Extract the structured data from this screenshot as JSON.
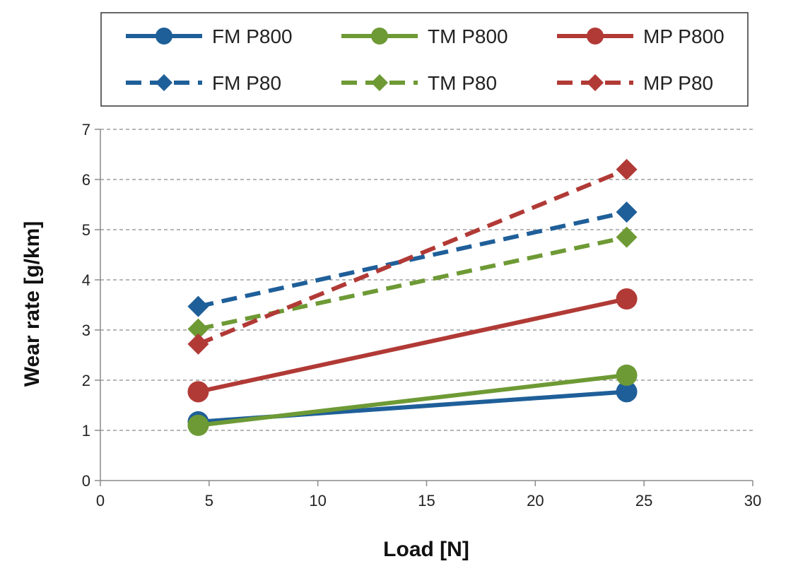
{
  "chart_data": {
    "type": "line",
    "title": "",
    "xlabel": "Load [N]",
    "ylabel": "Wear rate [g/km]",
    "xlim": [
      0,
      30
    ],
    "ylim": [
      0,
      7
    ],
    "xticks": [
      0,
      5,
      10,
      15,
      20,
      25,
      30
    ],
    "yticks": [
      0,
      1,
      2,
      3,
      4,
      5,
      6,
      7
    ],
    "grid": "horizontal dashed",
    "legend_position": "top",
    "series": [
      {
        "name": "FM P800",
        "x": [
          4.5,
          24.2
        ],
        "y": [
          1.17,
          1.77
        ],
        "color": "#1f5f99",
        "dash": "solid",
        "marker": "circle"
      },
      {
        "name": "TM P800",
        "x": [
          4.5,
          24.2
        ],
        "y": [
          1.1,
          2.1
        ],
        "color": "#6e9a35",
        "dash": "solid",
        "marker": "circle"
      },
      {
        "name": "MP P800",
        "x": [
          4.5,
          24.2
        ],
        "y": [
          1.77,
          3.62
        ],
        "color": "#b13a36",
        "dash": "solid",
        "marker": "circle"
      },
      {
        "name": "FM P80",
        "x": [
          4.5,
          24.2
        ],
        "y": [
          3.47,
          5.35
        ],
        "color": "#1f5f99",
        "dash": "dashed",
        "marker": "diamond"
      },
      {
        "name": "TM P80",
        "x": [
          4.5,
          24.2
        ],
        "y": [
          3.02,
          4.85
        ],
        "color": "#6e9a35",
        "dash": "dashed",
        "marker": "diamond"
      },
      {
        "name": "MP P80",
        "x": [
          4.5,
          24.2
        ],
        "y": [
          2.72,
          6.2
        ],
        "color": "#b13a36",
        "dash": "dashed",
        "marker": "diamond"
      }
    ]
  }
}
